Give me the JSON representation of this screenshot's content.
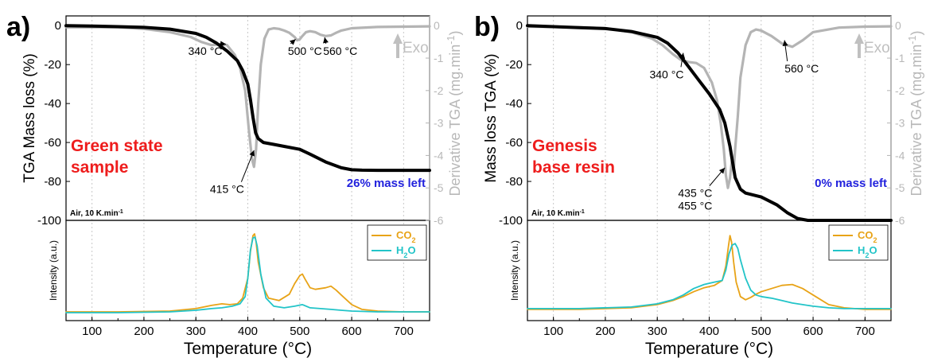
{
  "panels": [
    {
      "label": "a)",
      "title_lines": [
        "Green state",
        "sample"
      ],
      "mass_left": "26% mass left",
      "atmosphere": "Air, 10 K.min",
      "atmosphere_sup": "-1",
      "ylabel_left": "TGA Mass loss (%)",
      "ylabel_right": "Derivative TGA (mg.min",
      "ylabel_right_sup": "-1",
      "ylabel_right_end": ")",
      "xlabel": "Temperature (°C)",
      "intensity_label": "Intensity (a.u.)",
      "exo_label": "Exo",
      "legend": {
        "co2": "CO",
        "co2_sub": "2",
        "h2o": "H",
        "h2o_sub": "2",
        "h2o_end": "O"
      },
      "annotations": [
        {
          "lines": [
            "340 °C"
          ],
          "text_x": 318,
          "text_y": -15,
          "tip_x": 358,
          "tip_y": -9.5
        },
        {
          "lines": [
            "415 °C"
          ],
          "text_x": 360,
          "text_y": -86,
          "tip_x": 412,
          "tip_y": -64
        },
        {
          "lines": [
            "500 °C"
          ],
          "text_x": 510,
          "text_y": -15,
          "tip_x": 492,
          "tip_y": -7
        },
        {
          "lines": [
            "560 °C"
          ],
          "text_x": 578,
          "text_y": -15,
          "tip_x": 548,
          "tip_y": -6
        }
      ]
    },
    {
      "label": "b)",
      "title_lines": [
        "Genesis",
        "base resin"
      ],
      "mass_left": "0% mass left",
      "atmosphere": "Air, 10 K.min",
      "atmosphere_sup": "-1",
      "ylabel_left": "Mass loss TGA (%)",
      "ylabel_right": "Derivative TGA (mg.min",
      "ylabel_right_sup": "-1",
      "ylabel_right_end": ")",
      "xlabel": "Temperature (°C)",
      "intensity_label": "Intensity (a.u.)",
      "exo_label": "Exo",
      "legend": {
        "co2": "CO",
        "co2_sub": "2",
        "h2o": "H",
        "h2o_sub": "2",
        "h2o_end": "O"
      },
      "annotations": [
        {
          "lines": [
            "340 °C"
          ],
          "text_x": 318,
          "text_y": -27,
          "tip_x": 350,
          "tip_y": -14
        },
        {
          "lines": [
            "560 °C"
          ],
          "text_x": 578,
          "text_y": -24,
          "tip_x": 545,
          "tip_y": -7.5
        },
        {
          "lines": [
            "435 °C",
            "455 °C"
          ],
          "text_x": 373,
          "text_y": -88,
          "tip_x": 430,
          "tip_y": -73
        }
      ]
    }
  ],
  "chart_data": [
    {
      "type": "line",
      "panel": "a",
      "xlim": [
        50,
        750
      ],
      "xticks": [
        100,
        200,
        300,
        400,
        500,
        600,
        700
      ],
      "y_left_lim": [
        -100,
        5
      ],
      "y_left_ticks": [
        0,
        -20,
        -40,
        -60,
        -80,
        -100
      ],
      "y_right_lim": [
        -6,
        0.3
      ],
      "y_right_ticks": [
        0,
        -1,
        -2,
        -3,
        -4,
        -5,
        -6
      ],
      "intensity_ylim": [
        0,
        1.05
      ],
      "grid_x": true,
      "legend_position": "top-right",
      "colors": {
        "tga": "#000000",
        "dtg": "#b4b4b4",
        "co2": "#e8a317",
        "h2o": "#22c4c8",
        "grid": "#c8c8c8"
      },
      "series": [
        {
          "key": "tga",
          "axis": "left",
          "x": [
            50,
            100,
            150,
            200,
            250,
            300,
            320,
            340,
            360,
            380,
            390,
            400,
            405,
            410,
            415,
            420,
            430,
            450,
            470,
            500,
            520,
            550,
            580,
            600,
            620,
            650,
            700,
            750
          ],
          "y": [
            0,
            -0.2,
            -0.5,
            -0.9,
            -1.8,
            -4,
            -6,
            -9,
            -13,
            -18,
            -23,
            -30,
            -38,
            -47,
            -55,
            -58,
            -60,
            -61,
            -62,
            -63.5,
            -66,
            -70,
            -73,
            -74,
            -74.2,
            -74.3,
            -74.3,
            -74.3
          ]
        },
        {
          "key": "dtg",
          "axis": "right",
          "x": [
            50,
            150,
            200,
            250,
            290,
            310,
            330,
            345,
            360,
            375,
            385,
            395,
            402,
            408,
            412,
            416,
            420,
            425,
            432,
            440,
            450,
            460,
            470,
            480,
            490,
            495,
            500,
            505,
            512,
            520,
            530,
            540,
            550,
            560,
            570,
            580,
            600,
            650,
            700,
            750
          ],
          "y": [
            -0.05,
            -0.05,
            -0.1,
            -0.2,
            -0.35,
            -0.5,
            -0.6,
            -0.58,
            -0.6,
            -0.9,
            -1.3,
            -2,
            -3.2,
            -4.1,
            -4.35,
            -3.8,
            -2.4,
            -1.2,
            -0.4,
            -0.12,
            -0.08,
            -0.1,
            -0.15,
            -0.22,
            -0.35,
            -0.45,
            -0.42,
            -0.32,
            -0.2,
            -0.17,
            -0.2,
            -0.28,
            -0.32,
            -0.3,
            -0.22,
            -0.15,
            -0.08,
            -0.04,
            -0.03,
            -0.02
          ]
        },
        {
          "key": "co2",
          "name": "CO2",
          "axis": "intensity",
          "x": [
            50,
            150,
            250,
            300,
            330,
            350,
            365,
            380,
            390,
            400,
            405,
            410,
            413,
            416,
            420,
            430,
            440,
            460,
            480,
            490,
            500,
            505,
            510,
            520,
            530,
            540,
            550,
            560,
            570,
            580,
            600,
            620,
            650,
            700,
            750
          ],
          "y": [
            0.03,
            0.03,
            0.04,
            0.07,
            0.11,
            0.13,
            0.12,
            0.13,
            0.2,
            0.45,
            0.78,
            0.98,
            1.0,
            0.9,
            0.65,
            0.33,
            0.2,
            0.17,
            0.25,
            0.38,
            0.48,
            0.5,
            0.44,
            0.33,
            0.31,
            0.32,
            0.33,
            0.35,
            0.3,
            0.24,
            0.12,
            0.06,
            0.04,
            0.03,
            0.03
          ]
        },
        {
          "key": "h2o",
          "name": "H2O",
          "axis": "intensity",
          "x": [
            50,
            150,
            250,
            300,
            330,
            350,
            370,
            385,
            395,
            400,
            405,
            410,
            414,
            418,
            425,
            435,
            450,
            470,
            490,
            505,
            520,
            540,
            560,
            580,
            600,
            650,
            700,
            750
          ],
          "y": [
            0.02,
            0.02,
            0.03,
            0.05,
            0.07,
            0.08,
            0.1,
            0.13,
            0.22,
            0.45,
            0.8,
            0.95,
            0.96,
            0.85,
            0.5,
            0.2,
            0.1,
            0.08,
            0.1,
            0.12,
            0.08,
            0.07,
            0.06,
            0.05,
            0.04,
            0.03,
            0.03,
            0.03
          ]
        }
      ]
    },
    {
      "type": "line",
      "panel": "b",
      "xlim": [
        50,
        750
      ],
      "xticks": [
        100,
        200,
        300,
        400,
        500,
        600,
        700
      ],
      "y_left_lim": [
        -100,
        5
      ],
      "y_left_ticks": [
        0,
        -20,
        -40,
        -60,
        -80,
        -100
      ],
      "y_right_lim": [
        -6,
        0.3
      ],
      "y_right_ticks": [
        0,
        -1,
        -2,
        -3,
        -4,
        -5,
        -6
      ],
      "intensity_ylim": [
        0,
        1.05
      ],
      "grid_x": true,
      "legend_position": "top-right",
      "colors": {
        "tga": "#000000",
        "dtg": "#b4b4b4",
        "co2": "#e8a317",
        "h2o": "#22c4c8",
        "grid": "#c8c8c8"
      },
      "series": [
        {
          "key": "tga",
          "axis": "left",
          "x": [
            50,
            100,
            150,
            200,
            250,
            300,
            320,
            340,
            360,
            380,
            400,
            420,
            430,
            440,
            450,
            460,
            470,
            500,
            530,
            550,
            570,
            590,
            600,
            620,
            650,
            700,
            750
          ],
          "y": [
            0,
            -0.5,
            -1,
            -1.5,
            -3,
            -6,
            -9,
            -14,
            -21,
            -28,
            -35,
            -43,
            -50,
            -62,
            -78,
            -84,
            -86,
            -88,
            -92,
            -96,
            -99,
            -100,
            -100,
            -100,
            -100,
            -100,
            -100
          ]
        },
        {
          "key": "dtg",
          "axis": "right",
          "x": [
            50,
            150,
            200,
            250,
            290,
            310,
            330,
            345,
            360,
            375,
            390,
            405,
            415,
            422,
            428,
            432,
            436,
            440,
            444,
            447,
            450,
            455,
            460,
            470,
            480,
            490,
            500,
            520,
            540,
            560,
            580,
            600,
            650,
            700,
            750
          ],
          "y": [
            -0.03,
            -0.05,
            -0.08,
            -0.2,
            -0.4,
            -0.6,
            -0.88,
            -1.05,
            -1.12,
            -1.15,
            -1.3,
            -1.75,
            -2.3,
            -3,
            -3.8,
            -4.6,
            -5.0,
            -4.7,
            -4.1,
            -4.5,
            -3.8,
            -2.8,
            -1.6,
            -0.6,
            -0.2,
            -0.12,
            -0.15,
            -0.32,
            -0.55,
            -0.65,
            -0.45,
            -0.2,
            -0.06,
            -0.03,
            -0.02
          ]
        },
        {
          "key": "co2",
          "name": "CO2",
          "axis": "intensity",
          "x": [
            50,
            150,
            250,
            300,
            330,
            350,
            370,
            390,
            410,
            425,
            432,
            437,
            440,
            443,
            447,
            452,
            460,
            470,
            480,
            490,
            500,
            520,
            540,
            560,
            580,
            600,
            630,
            660,
            700,
            750
          ],
          "y": [
            0.06,
            0.06,
            0.08,
            0.12,
            0.17,
            0.22,
            0.28,
            0.33,
            0.36,
            0.42,
            0.6,
            0.85,
            0.98,
            0.9,
            0.65,
            0.4,
            0.22,
            0.18,
            0.21,
            0.25,
            0.28,
            0.32,
            0.36,
            0.37,
            0.32,
            0.24,
            0.12,
            0.08,
            0.06,
            0.06
          ]
        },
        {
          "key": "h2o",
          "name": "H2O",
          "axis": "intensity",
          "x": [
            50,
            150,
            250,
            300,
            330,
            350,
            370,
            390,
            410,
            425,
            432,
            438,
            444,
            450,
            455,
            460,
            470,
            480,
            490,
            500,
            520,
            540,
            560,
            580,
            600,
            630,
            660,
            700,
            750
          ],
          "y": [
            0.07,
            0.07,
            0.09,
            0.13,
            0.18,
            0.24,
            0.32,
            0.37,
            0.4,
            0.42,
            0.55,
            0.75,
            0.86,
            0.88,
            0.82,
            0.68,
            0.45,
            0.3,
            0.24,
            0.22,
            0.2,
            0.17,
            0.14,
            0.12,
            0.1,
            0.08,
            0.07,
            0.07,
            0.07
          ]
        }
      ]
    }
  ]
}
